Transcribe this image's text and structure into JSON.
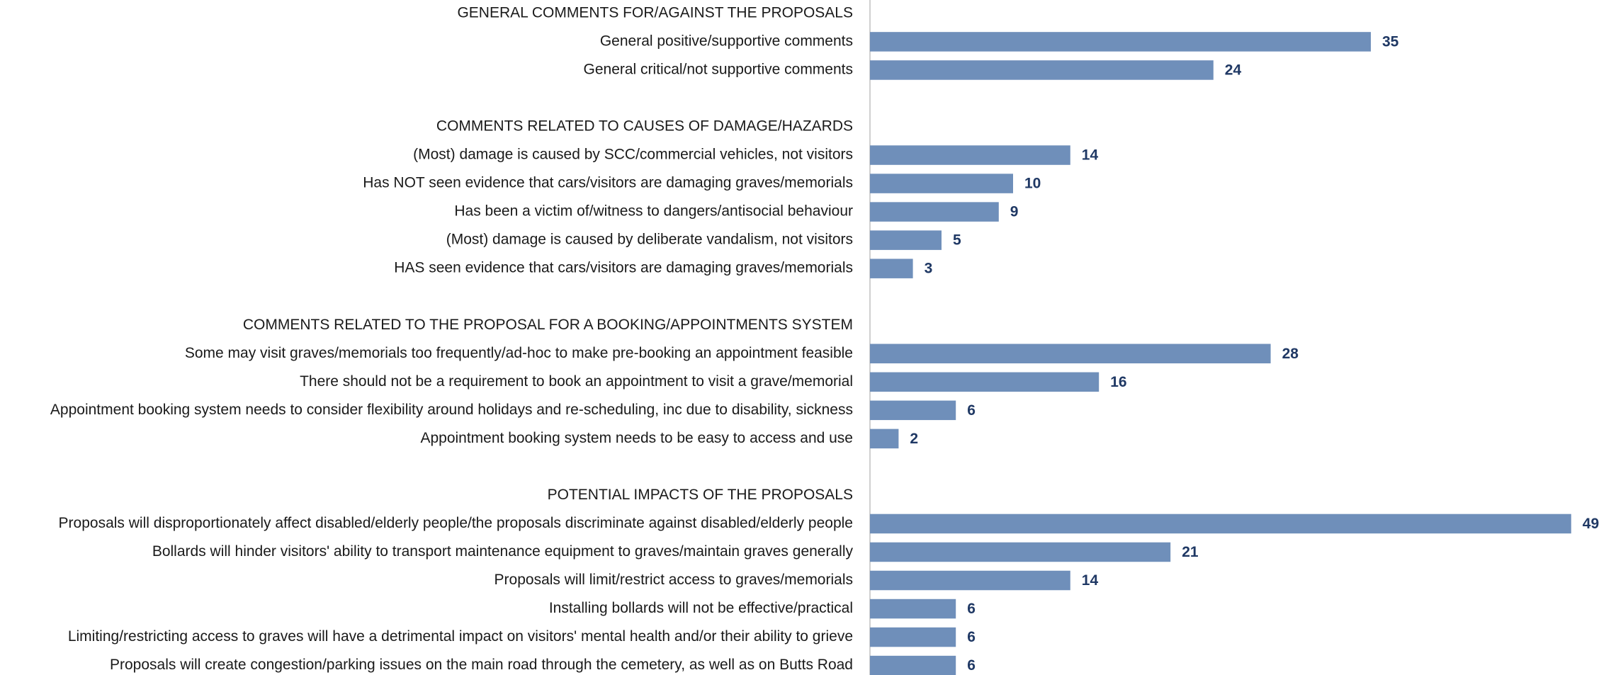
{
  "chart_data": {
    "type": "bar",
    "color": "#6f8fba",
    "value_color": "#1f3864",
    "groups": [
      {
        "name": "GENERAL COMMENTS FOR/AGAINST THE PROPOSALS",
        "categories": [
          "General positive/supportive comments",
          "General critical/not supportive comments"
        ],
        "values": [
          35,
          24
        ]
      },
      {
        "name": "COMMENTS RELATED TO CAUSES OF DAMAGE/HAZARDS",
        "categories": [
          "(Most) damage is caused by SCC/commercial vehicles, not visitors",
          "Has NOT seen evidence that cars/visitors are damaging graves/memorials",
          "Has been a victim of/witness to dangers/antisocial behaviour",
          "(Most) damage is caused by deliberate vandalism, not visitors",
          "HAS seen evidence that cars/visitors are damaging graves/memorials"
        ],
        "values": [
          14,
          10,
          9,
          5,
          3
        ]
      },
      {
        "name": "COMMENTS RELATED TO THE PROPOSAL FOR A BOOKING/APPOINTMENTS SYSTEM",
        "categories": [
          "Some may visit graves/memorials too frequently/ad-hoc to make pre-booking an appointment feasible",
          "There should not be a requirement to book an appointment to visit a grave/memorial",
          "Appointment booking system needs to consider flexibility around holidays and re-scheduling, inc due to disability, sickness",
          "Appointment booking system needs to be easy to access and use"
        ],
        "values": [
          28,
          16,
          6,
          2
        ]
      },
      {
        "name": "POTENTIAL IMPACTS OF THE PROPOSALS",
        "categories": [
          "Proposals will disproportionately affect disabled/elderly people/the proposals discriminate against disabled/elderly people",
          "Bollards will hinder visitors' ability to transport maintenance equipment to graves/maintain graves generally",
          "Proposals will limit/restrict access to graves/memorials",
          "Installing bollards will not be effective/practical",
          "Limiting/restricting access to graves will have a detrimental impact on visitors' mental health and/or their ability to grieve",
          "Proposals will create congestion/parking issues on the main road through the cemetery, as well as on Butts Road"
        ],
        "values": [
          49,
          21,
          14,
          6,
          6,
          6
        ]
      }
    ]
  }
}
